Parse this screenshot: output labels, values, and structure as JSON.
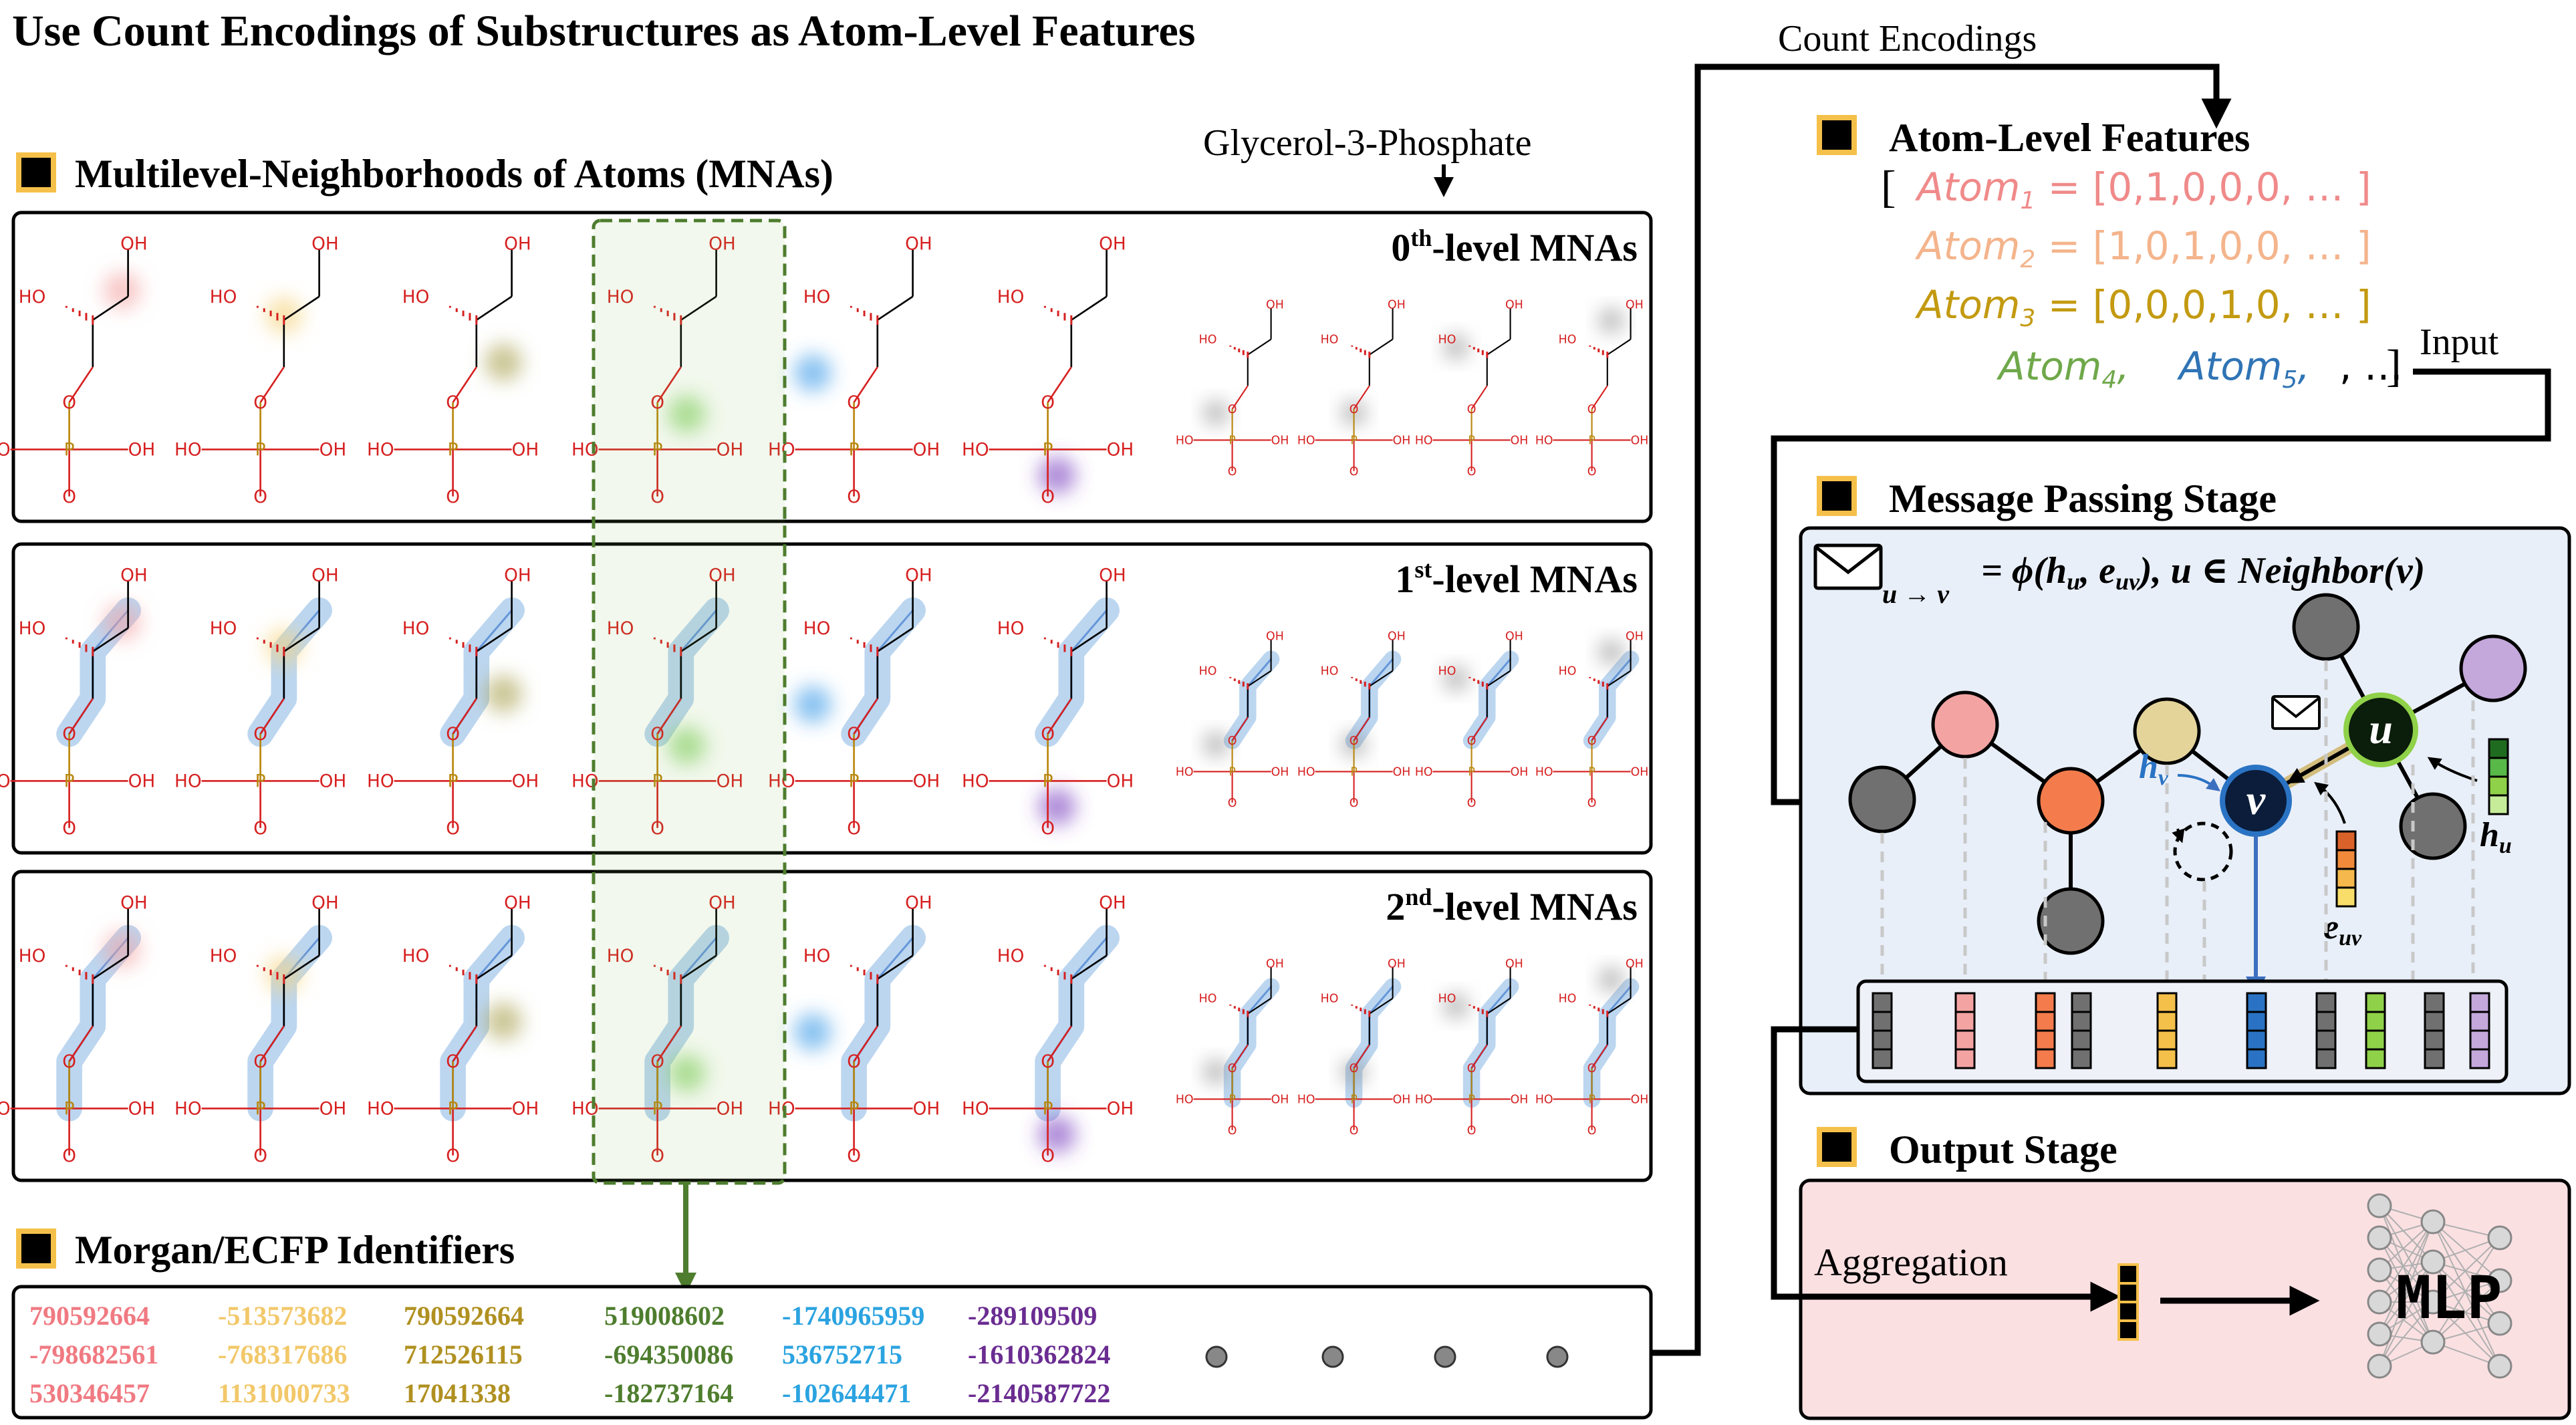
{
  "title": "Use Count Encodings of Substructures as Atom-Level Features",
  "mna": {
    "heading": "Multilevel-Neighborhoods of Atoms (MNAs)",
    "molecule_label": "Glycerol-3-Phosphate",
    "levels": [
      {
        "pre": "0",
        "sup": "th",
        "post": "-level MNAs"
      },
      {
        "pre": "1",
        "sup": "st",
        "post": "-level MNAs"
      },
      {
        "pre": "2",
        "sup": "nd",
        "post": "-level MNAs"
      }
    ],
    "atom_labels": {
      "oh": "OH",
      "ho": "HO",
      "o": "O",
      "p": "P"
    }
  },
  "morgan": {
    "heading": "Morgan/ECFP Identifiers",
    "columns": [
      {
        "color": "#f07a82",
        "ids": [
          "790592664",
          "-798682561",
          "530346457"
        ]
      },
      {
        "color": "#f2c86a",
        "ids": [
          "-513573682",
          "-768317686",
          "1131000733"
        ]
      },
      {
        "color": "#b09020",
        "ids": [
          "790592664",
          "712526115",
          "17041338"
        ]
      },
      {
        "color": "#4e7d2e",
        "ids": [
          "519008602",
          "-694350086",
          "-182737164"
        ]
      },
      {
        "color": "#2ba3e0",
        "ids": [
          "-1740965959",
          "536752715",
          "-102644471"
        ]
      },
      {
        "color": "#6a2c91",
        "ids": [
          "-289109509",
          "-1610362824",
          "-2140587722"
        ]
      }
    ]
  },
  "count_label": "Count Encodings",
  "atom_features": {
    "heading": "Atom-Level Features",
    "open_bracket": "[",
    "close_bracket": "]",
    "rows": [
      {
        "name": "Atom",
        "sub": "1",
        "value": " = [0,1,0,0,0, … ]",
        "color": "#f08a8a"
      },
      {
        "name": "Atom",
        "sub": "2",
        "value": " = [1,0,1,0,0, … ]",
        "color": "#f4b48c"
      },
      {
        "name": "Atom",
        "sub": "3",
        "value": " = [0,0,0,1,0, … ]",
        "color": "#c39a10"
      }
    ],
    "atom4": {
      "name": "Atom",
      "sub": "4",
      "color": "#6fa84a"
    },
    "atom5": {
      "name": "Atom",
      "sub": "5",
      "color": "#2f74b5"
    },
    "tail": ", … ",
    "input_label": "Input"
  },
  "message_passing": {
    "heading": "Message Passing Stage",
    "formula": {
      "sub": "u → v",
      "body": "= ϕ(h",
      "hu_sub": "u",
      "mid": ", e",
      "euv_sub": "uv",
      "post": "),  u ∈ Neighbor(v)"
    },
    "node_u": "u",
    "node_v": "v",
    "hv_label": "h",
    "hv_sub": "v",
    "hu_label": "h",
    "hu_sub": "u",
    "euv_label": "e",
    "euv_sub": "uv"
  },
  "output": {
    "heading": "Output Stage",
    "aggregation_label": "Aggregation",
    "mlp_label": "MLP"
  },
  "colors": {
    "atom1": "#f4a3a3",
    "atom2": "#f47c4c",
    "atom3": "#e5d49a",
    "atom4": "#8fd148",
    "atom5": "#2a73c4",
    "neutral": "#707070",
    "purple": "#c4a8dc",
    "panel_blue": "#e9eff8",
    "panel_pink": "#fbe0e2"
  }
}
